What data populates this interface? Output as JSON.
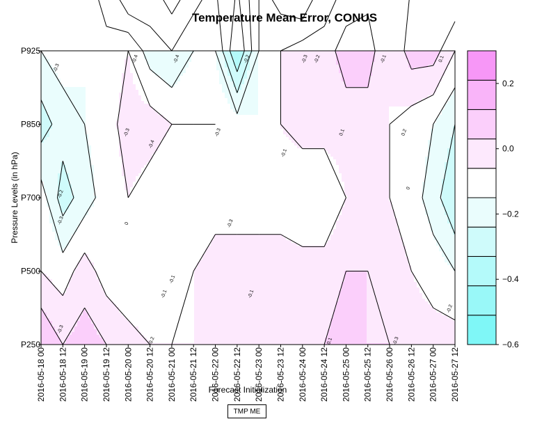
{
  "chart_data": {
    "type": "heatmap",
    "subtype": "filled-contour",
    "title": "Temperature Mean Error, CONUS",
    "xlabel": "Forecast Initialization",
    "ylabel": "Pressure Levels (in hPa)",
    "x_ticks": [
      "2016-05-18 00",
      "2016-05-18 12",
      "2016-05-19 00",
      "2016-05-19 12",
      "2016-05-20 00",
      "2016-05-20 12",
      "2016-05-21 00",
      "2016-05-21 12",
      "2016-05-22 00",
      "2016-05-22 12",
      "2016-05-23 00",
      "2016-05-23 12",
      "2016-05-24 00",
      "2016-05-24 12",
      "2016-05-25 00",
      "2016-05-25 12",
      "2016-05-26 00",
      "2016-05-26 12",
      "2016-05-27 00",
      "2016-05-27 12"
    ],
    "y_ticks": [
      "P250",
      "P500",
      "P700",
      "P850",
      "P925"
    ],
    "colorbar": {
      "levels": [
        -0.6,
        -0.5,
        -0.4,
        -0.3,
        -0.2,
        -0.1,
        0.0,
        0.1,
        0.2,
        0.3
      ],
      "tick_labels": [
        "−0.6",
        "−0.4",
        "−0.2",
        "0.0",
        "0.2"
      ],
      "tick_values": [
        -0.6,
        -0.4,
        -0.2,
        0.0,
        0.2
      ],
      "colors": [
        "#7ff7f7",
        "#99f8f8",
        "#b4fafa",
        "#cffbfb",
        "#eafdfd",
        "#ffffff",
        "#fde9fd",
        "#fbcffb",
        "#f9b4f9",
        "#f797f7"
      ]
    },
    "contour_labels": [
      "-0.3",
      "-0.4",
      "-0.4",
      "-0.2",
      "-0.3",
      "-0.2",
      "-0.1",
      "-0.3",
      "-0.4",
      "-0.3",
      "-0.1",
      "-0.2",
      "-0.3",
      "-0.1",
      "0",
      "0.1",
      "0.2",
      "0.1",
      "-0.1",
      "-0.2",
      "-0.3",
      "-0.2",
      "0",
      "-0.3",
      "0.1",
      "-0.1",
      "-0.3"
    ],
    "values": [
      [
        0.2,
        0.1,
        0.15,
        0.1,
        0.05,
        0.0,
        0.0,
        0.0,
        0.0,
        0.0,
        0.05,
        0.0,
        0.05,
        0.1,
        0.15,
        0.1,
        0.1,
        0.05,
        0.05,
        0.05
      ],
      [
        0.0,
        -0.05,
        0.05,
        -0.05,
        -0.1,
        -0.1,
        -0.05,
        0.0,
        0.05,
        0.05,
        0.05,
        0.05,
        0.05,
        0.05,
        0.1,
        0.1,
        0.05,
        0.0,
        -0.05,
        -0.1
      ],
      [
        -0.05,
        -0.25,
        -0.15,
        -0.05,
        0.0,
        -0.05,
        -0.1,
        -0.1,
        -0.05,
        -0.05,
        -0.05,
        -0.05,
        -0.1,
        -0.1,
        0.0,
        0.05,
        0.0,
        -0.05,
        -0.15,
        -0.3
      ],
      [
        -0.25,
        -0.15,
        -0.1,
        -0.05,
        0.05,
        0.05,
        0.0,
        0.0,
        0.0,
        -0.05,
        -0.1,
        0.0,
        0.05,
        0.05,
        0.05,
        0.05,
        0.0,
        -0.05,
        -0.1,
        -0.2
      ],
      [
        -0.1,
        -0.05,
        -0.1,
        -0.05,
        0.0,
        -0.15,
        -0.2,
        -0.1,
        -0.1,
        -0.4,
        -0.1,
        0.0,
        0.05,
        0.05,
        0.15,
        0.15,
        0.0,
        0.15,
        0.15,
        0.0
      ],
      [
        0.0,
        -0.1,
        -0.05,
        -0.2,
        -0.4,
        -0.3,
        -0.4,
        -0.3,
        -0.2,
        -0.3,
        -0.1,
        -0.2,
        -0.3,
        -0.1,
        0.0,
        0.05,
        0.05,
        0.1,
        0.2,
        0.25
      ]
    ],
    "series_label": "TMP ME"
  }
}
